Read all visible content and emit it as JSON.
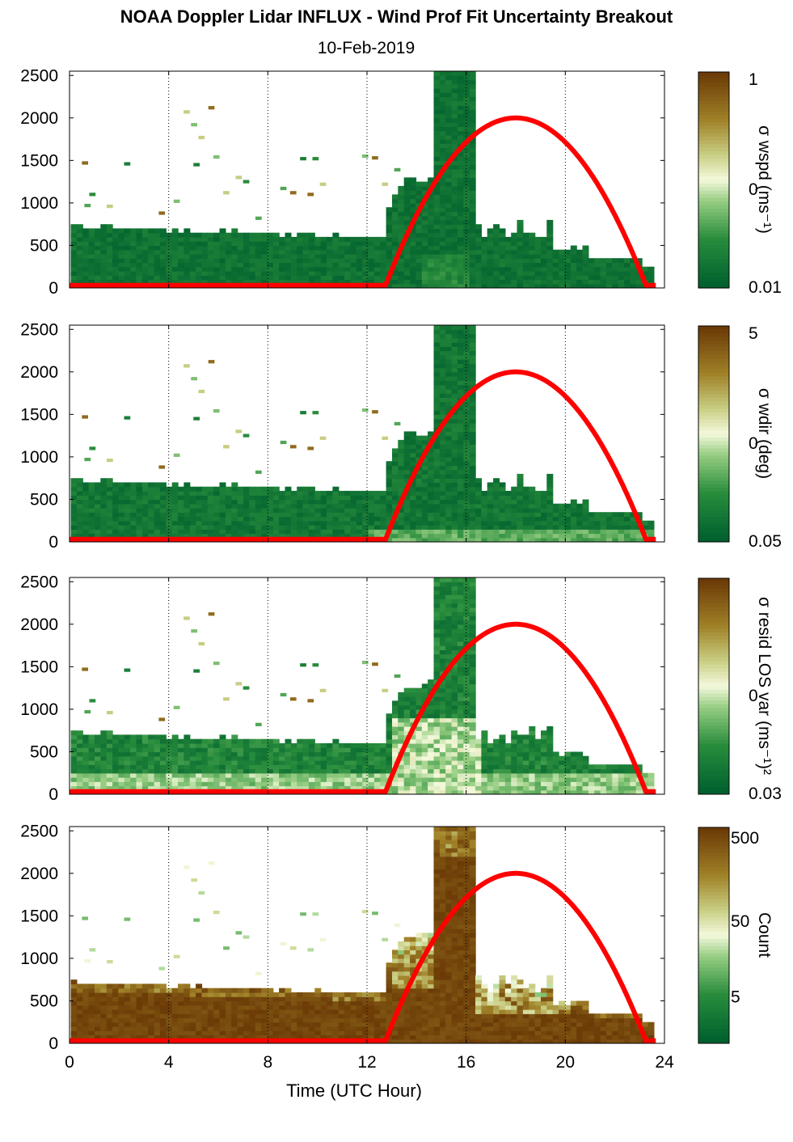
{
  "title": "NOAA Doppler Lidar INFLUX - Wind Prof Fit Uncertainty Breakout",
  "subtitle": "10-Feb-2019",
  "colors": {
    "line": "#ff0000",
    "scale_low": "#00602e",
    "scale_mid": "#f4f9dc",
    "scale_high": "#6b3a06"
  },
  "chart_data": {
    "type": "heatmap",
    "xlabel": "Time (UTC Hour)",
    "xlim": [
      0,
      24
    ],
    "xticks": [
      0,
      4,
      8,
      12,
      16,
      20,
      24
    ],
    "ylim": [
      0,
      2550
    ],
    "yticks": [
      0,
      500,
      1000,
      1500,
      2000,
      2500
    ],
    "dotted_grid_x": [
      4,
      8,
      12,
      16,
      20,
      24
    ],
    "red_curve": {
      "sunrise_hour": 12.8,
      "sunset_hour": 23.3,
      "peak_hour": 18.0,
      "peak_value": 2000,
      "base_value": 30
    },
    "panels": [
      {
        "colorbar_label": "σ wspd (ms⁻¹)",
        "colorbar_ticks": [
          "1",
          "0",
          "0.01"
        ],
        "field": "wspd"
      },
      {
        "colorbar_label": "σ wdir (deg)",
        "colorbar_ticks": [
          "5",
          "0",
          "0.05"
        ],
        "field": "wdir"
      },
      {
        "colorbar_label": "σ resid LOS var (ms⁻¹)²",
        "colorbar_ticks": [
          "",
          "0",
          "0.03"
        ],
        "field": "resid"
      },
      {
        "colorbar_label": "Count",
        "colorbar_ticks": [
          "500",
          "50",
          "5"
        ],
        "field": "count"
      }
    ]
  }
}
